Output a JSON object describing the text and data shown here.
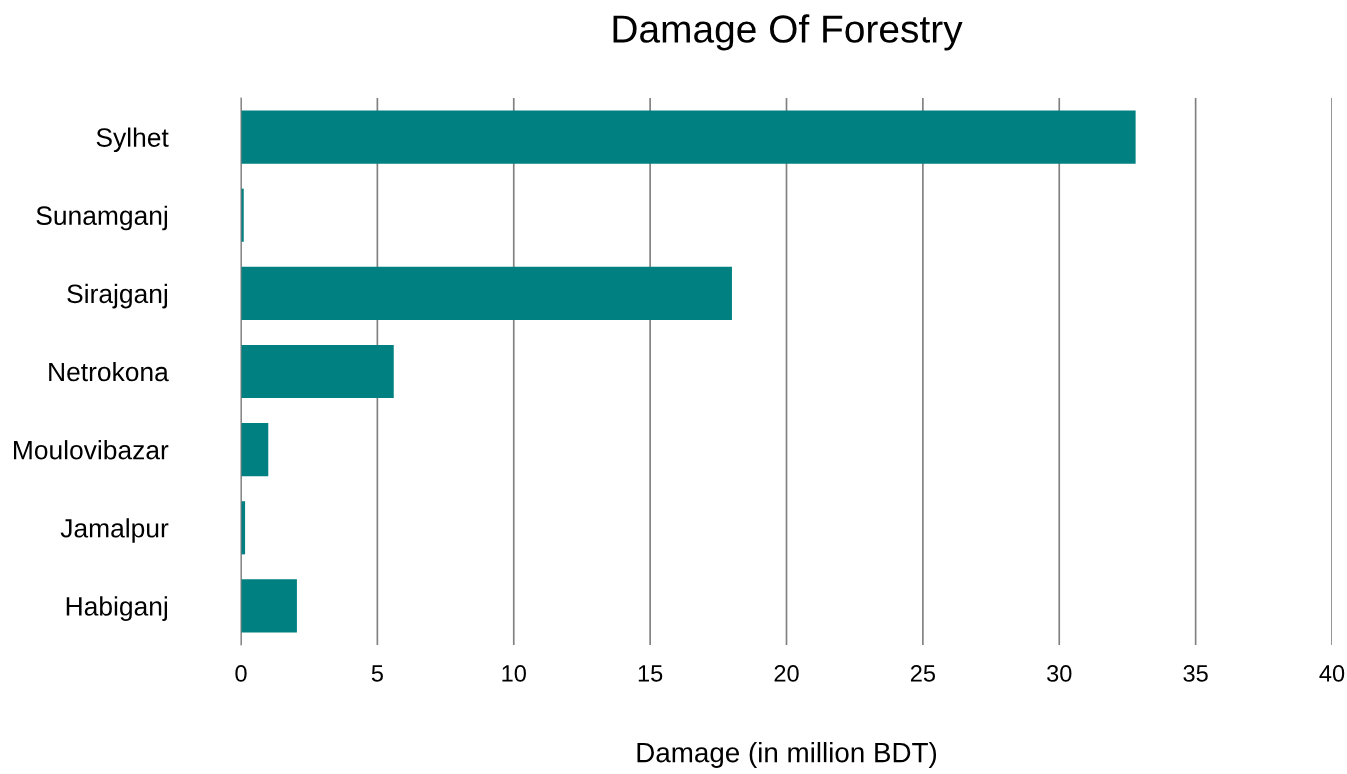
{
  "chart_data": {
    "type": "bar",
    "orientation": "horizontal",
    "title": "Damage Of Forestry",
    "xlabel": "Damage (in million BDT)",
    "categories": [
      "Sylhet",
      "Sunamganj",
      "Sirajganj",
      "Netrokona",
      "Moulovibazar",
      "Jamalpur",
      "Habiganj"
    ],
    "values": [
      32.8,
      0.1,
      18.0,
      5.6,
      1.0,
      0.15,
      2.05
    ],
    "color": "#008080",
    "xlim": [
      0,
      40
    ],
    "xticks": [
      0,
      5,
      10,
      15,
      20,
      25,
      30,
      35,
      40
    ],
    "grid": "x"
  }
}
